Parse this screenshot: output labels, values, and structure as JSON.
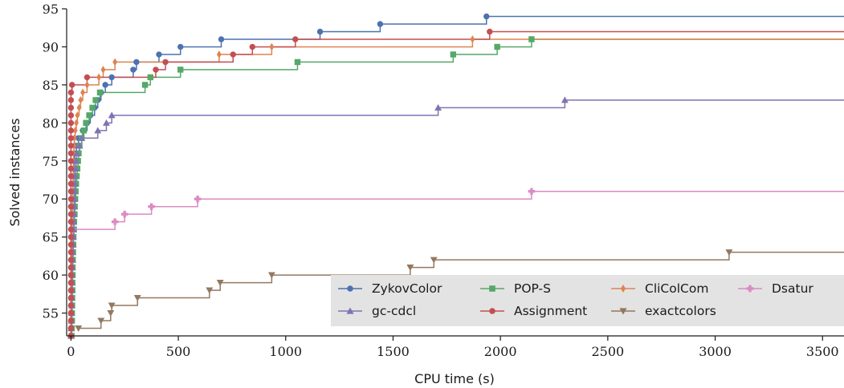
{
  "chart_data": {
    "type": "line",
    "step": true,
    "xlabel": "CPU time (s)",
    "ylabel": "Solved instances",
    "xlim": [
      -20,
      3600
    ],
    "ylim": [
      52,
      95
    ],
    "xticks": [
      0,
      500,
      1000,
      1500,
      2000,
      2500,
      3000,
      3500
    ],
    "yticks": [
      55,
      60,
      65,
      70,
      75,
      80,
      85,
      90,
      95
    ],
    "grid": false,
    "legend_position": "bottom-right",
    "series": [
      {
        "name": "ZykovColor",
        "color": "#4c72b0",
        "marker": "circle",
        "points": [
          [
            0,
            52
          ],
          [
            0,
            53
          ],
          [
            1,
            54
          ],
          [
            1,
            55
          ],
          [
            1,
            56
          ],
          [
            1,
            57
          ],
          [
            2,
            58
          ],
          [
            2,
            59
          ],
          [
            2,
            60
          ],
          [
            3,
            61
          ],
          [
            3,
            62
          ],
          [
            3,
            63
          ],
          [
            4,
            64
          ],
          [
            4,
            65
          ],
          [
            5,
            66
          ],
          [
            5,
            67
          ],
          [
            6,
            68
          ],
          [
            7,
            69
          ],
          [
            8,
            70
          ],
          [
            9,
            71
          ],
          [
            10,
            72
          ],
          [
            12,
            73
          ],
          [
            14,
            74
          ],
          [
            16,
            75
          ],
          [
            18,
            76
          ],
          [
            25,
            77
          ],
          [
            35,
            78
          ],
          [
            55,
            79
          ],
          [
            75,
            80
          ],
          [
            90,
            81
          ],
          [
            110,
            82
          ],
          [
            125,
            83
          ],
          [
            140,
            84
          ],
          [
            160,
            85
          ],
          [
            190,
            86
          ],
          [
            290,
            87
          ],
          [
            305,
            88
          ],
          [
            410,
            89
          ],
          [
            510,
            90
          ],
          [
            700,
            91
          ],
          [
            1160,
            92
          ],
          [
            1440,
            93
          ],
          [
            1935,
            94
          ]
        ]
      },
      {
        "name": "POP-S",
        "color": "#55a868",
        "marker": "square",
        "points": [
          [
            3,
            52
          ],
          [
            4,
            53
          ],
          [
            5,
            54
          ],
          [
            5,
            55
          ],
          [
            6,
            56
          ],
          [
            6,
            57
          ],
          [
            7,
            58
          ],
          [
            7,
            59
          ],
          [
            8,
            60
          ],
          [
            8,
            61
          ],
          [
            9,
            62
          ],
          [
            10,
            63
          ],
          [
            11,
            64
          ],
          [
            12,
            65
          ],
          [
            14,
            66
          ],
          [
            15,
            67
          ],
          [
            17,
            68
          ],
          [
            18,
            69
          ],
          [
            20,
            70
          ],
          [
            22,
            71
          ],
          [
            24,
            72
          ],
          [
            27,
            73
          ],
          [
            30,
            74
          ],
          [
            33,
            75
          ],
          [
            36,
            76
          ],
          [
            40,
            77
          ],
          [
            50,
            78
          ],
          [
            60,
            79
          ],
          [
            70,
            80
          ],
          [
            85,
            81
          ],
          [
            100,
            82
          ],
          [
            115,
            83
          ],
          [
            135,
            84
          ],
          [
            345,
            85
          ],
          [
            370,
            86
          ],
          [
            510,
            87
          ],
          [
            1055,
            88
          ],
          [
            1780,
            89
          ],
          [
            1985,
            90
          ],
          [
            2145,
            91
          ]
        ]
      },
      {
        "name": "CliColCom",
        "color": "#dd8452",
        "marker": "diamond",
        "points": [
          [
            0,
            52
          ],
          [
            1,
            53
          ],
          [
            1,
            54
          ],
          [
            1,
            55
          ],
          [
            2,
            56
          ],
          [
            2,
            57
          ],
          [
            2,
            58
          ],
          [
            3,
            59
          ],
          [
            3,
            60
          ],
          [
            3,
            61
          ],
          [
            4,
            62
          ],
          [
            4,
            63
          ],
          [
            4,
            64
          ],
          [
            5,
            65
          ],
          [
            5,
            66
          ],
          [
            6,
            67
          ],
          [
            6,
            68
          ],
          [
            7,
            69
          ],
          [
            7,
            70
          ],
          [
            8,
            71
          ],
          [
            9,
            72
          ],
          [
            10,
            73
          ],
          [
            11,
            74
          ],
          [
            12,
            75
          ],
          [
            13,
            76
          ],
          [
            14,
            77
          ],
          [
            16,
            78
          ],
          [
            20,
            79
          ],
          [
            25,
            80
          ],
          [
            30,
            81
          ],
          [
            38,
            82
          ],
          [
            45,
            83
          ],
          [
            55,
            84
          ],
          [
            75,
            85
          ],
          [
            130,
            86
          ],
          [
            150,
            87
          ],
          [
            205,
            88
          ],
          [
            690,
            89
          ],
          [
            935,
            90
          ],
          [
            1870,
            91
          ]
        ]
      },
      {
        "name": "Dsatur",
        "color": "#da8bc3",
        "marker": "plus",
        "points": [
          [
            10,
            66
          ],
          [
            205,
            67
          ],
          [
            250,
            68
          ],
          [
            375,
            69
          ],
          [
            590,
            70
          ],
          [
            2145,
            71
          ]
        ]
      },
      {
        "name": "gc-cdcl",
        "color": "#8172b3",
        "marker": "triangle-up",
        "points": [
          [
            0,
            52
          ],
          [
            1,
            53
          ],
          [
            2,
            54
          ],
          [
            3,
            55
          ],
          [
            4,
            56
          ],
          [
            5,
            57
          ],
          [
            5,
            58
          ],
          [
            6,
            59
          ],
          [
            6,
            60
          ],
          [
            7,
            61
          ],
          [
            8,
            62
          ],
          [
            9,
            63
          ],
          [
            10,
            64
          ],
          [
            11,
            65
          ],
          [
            12,
            66
          ],
          [
            13,
            67
          ],
          [
            14,
            68
          ],
          [
            15,
            69
          ],
          [
            16,
            70
          ],
          [
            17,
            71
          ],
          [
            18,
            72
          ],
          [
            20,
            73
          ],
          [
            22,
            74
          ],
          [
            24,
            75
          ],
          [
            27,
            76
          ],
          [
            40,
            77
          ],
          [
            50,
            78
          ],
          [
            125,
            79
          ],
          [
            165,
            80
          ],
          [
            190,
            81
          ],
          [
            1710,
            82
          ],
          [
            2300,
            83
          ]
        ]
      },
      {
        "name": "Assignment",
        "color": "#c44e52",
        "marker": "circle",
        "points": [
          [
            0,
            52
          ],
          [
            0,
            53
          ],
          [
            0,
            54
          ],
          [
            0,
            55
          ],
          [
            0,
            56
          ],
          [
            0,
            57
          ],
          [
            0,
            58
          ],
          [
            0,
            59
          ],
          [
            0,
            60
          ],
          [
            0,
            61
          ],
          [
            0,
            62
          ],
          [
            0,
            63
          ],
          [
            0,
            64
          ],
          [
            0,
            65
          ],
          [
            0,
            66
          ],
          [
            0,
            67
          ],
          [
            0,
            68
          ],
          [
            0,
            69
          ],
          [
            0,
            70
          ],
          [
            0,
            71
          ],
          [
            0,
            72
          ],
          [
            0,
            73
          ],
          [
            0,
            74
          ],
          [
            0,
            75
          ],
          [
            0,
            76
          ],
          [
            0,
            77
          ],
          [
            0,
            78
          ],
          [
            0,
            79
          ],
          [
            0,
            80
          ],
          [
            0,
            81
          ],
          [
            0,
            82
          ],
          [
            0,
            83
          ],
          [
            0,
            84
          ],
          [
            5,
            85
          ],
          [
            75,
            86
          ],
          [
            395,
            87
          ],
          [
            440,
            88
          ],
          [
            755,
            89
          ],
          [
            845,
            90
          ],
          [
            1045,
            91
          ],
          [
            1950,
            92
          ]
        ]
      },
      {
        "name": "exactcolors",
        "color": "#937860",
        "marker": "triangle-down",
        "points": [
          [
            35,
            53
          ],
          [
            140,
            54
          ],
          [
            185,
            55
          ],
          [
            190,
            56
          ],
          [
            310,
            57
          ],
          [
            645,
            58
          ],
          [
            695,
            59
          ],
          [
            935,
            60
          ],
          [
            1580,
            61
          ],
          [
            1690,
            62
          ],
          [
            3065,
            63
          ]
        ]
      }
    ]
  }
}
